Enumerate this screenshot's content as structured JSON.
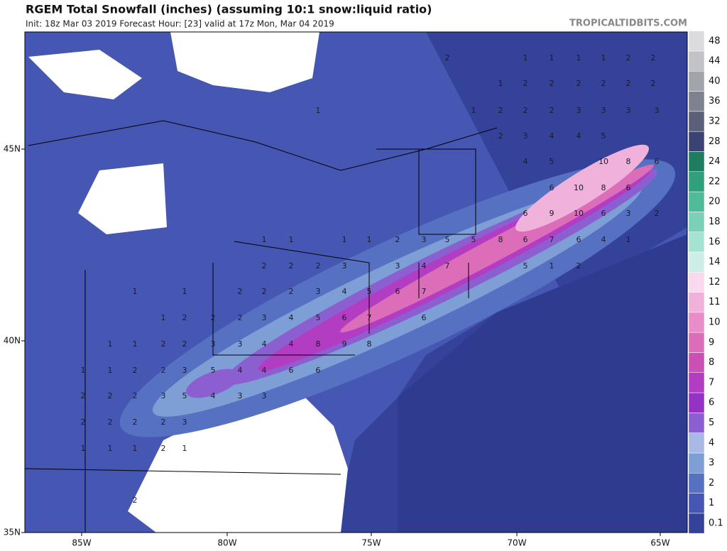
{
  "header": {
    "title": "RGEM Total Snowfall (inches) (assuming 10:1 snow:liquid ratio)",
    "subtitle": "Init: 18z Mar 03 2019   Forecast Hour: [23]   valid at 17z Mon, Mar 04 2019",
    "watermark": "TROPICALTIDBITS.COM"
  },
  "colorbar": {
    "labels": [
      "0.1",
      "1",
      "2",
      "3",
      "4",
      "5",
      "6",
      "7",
      "8",
      "9",
      "10",
      "11",
      "12",
      "14",
      "16",
      "18",
      "20",
      "22",
      "24",
      "28",
      "32",
      "36",
      "40",
      "44",
      "48"
    ],
    "colors": [
      "#34429a",
      "#4556b3",
      "#5670c2",
      "#7e9ed6",
      "#a9b9e6",
      "#8c5fd0",
      "#9631c6",
      "#b33dc2",
      "#cc4fb4",
      "#dc6db9",
      "#e88dc8",
      "#f0b2da",
      "#f8d9ee",
      "#cdeee6",
      "#a6e2d3",
      "#7bd0b8",
      "#4fbb98",
      "#2f9f7c",
      "#1d7c61",
      "#3c4374",
      "#5b5f7a",
      "#7e8190",
      "#a2a4ac",
      "#c2c3c8",
      "#dcdcdf"
    ]
  },
  "axes": {
    "lon_labels": [
      "85W",
      "80W",
      "75W",
      "70W",
      "65W"
    ],
    "lat_labels": [
      "45N",
      "40N",
      "35N"
    ]
  },
  "map_labels": [
    "2",
    "1",
    "1",
    "1",
    "1",
    "2",
    "2",
    "1",
    "2",
    "2",
    "2",
    "2",
    "2",
    "2",
    "1",
    "1",
    "2",
    "2",
    "2",
    "3",
    "3",
    "3",
    "3",
    "2",
    "3",
    "4",
    "4",
    "5",
    "4",
    "5",
    "10",
    "8",
    "6",
    "6",
    "10",
    "8",
    "6",
    "6",
    "9",
    "10",
    "6",
    "3",
    "2",
    "8",
    "6",
    "7",
    "6",
    "4",
    "1",
    "5",
    "1",
    "2",
    "1",
    "1",
    "1",
    "1",
    "2",
    "3",
    "5",
    "5",
    "2",
    "2",
    "2",
    "3",
    "3",
    "4",
    "7",
    "1",
    "1",
    "2",
    "2",
    "2",
    "3",
    "4",
    "5",
    "6",
    "7",
    "1",
    "2",
    "2",
    "2",
    "3",
    "4",
    "5",
    "6",
    "7",
    "6",
    "1",
    "1",
    "2",
    "2",
    "3",
    "3",
    "4",
    "4",
    "8",
    "9",
    "8",
    "1",
    "1",
    "2",
    "2",
    "3",
    "5",
    "4",
    "4",
    "6",
    "6",
    "2",
    "2",
    "2",
    "3",
    "5",
    "4",
    "3",
    "3",
    "2",
    "2",
    "2",
    "2",
    "3",
    "1",
    "1",
    "1",
    "2",
    "1",
    "2"
  ]
}
